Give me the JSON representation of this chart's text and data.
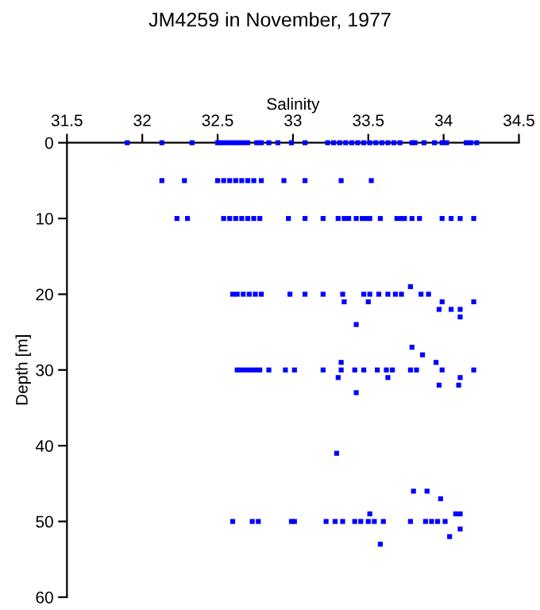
{
  "chart_data": {
    "type": "scatter",
    "title": "JM4259 in November, 1977",
    "xlabel": "Salinity",
    "ylabel": "Depth [m]",
    "xlim": [
      31.5,
      34.5
    ],
    "xticks": [
      31.5,
      32,
      32.5,
      33,
      33.5,
      34,
      34.5
    ],
    "ylim": [
      60,
      0
    ],
    "yticks": [
      0,
      10,
      20,
      30,
      40,
      50,
      60
    ],
    "marker": "square",
    "grid": false,
    "series": [
      {
        "color": "#0000ff",
        "x": [
          31.9,
          32.13,
          32.33,
          32.5,
          32.52,
          32.55,
          32.58,
          32.61,
          32.64,
          32.67,
          32.7,
          32.76,
          32.79,
          32.84,
          32.9,
          32.99,
          33.08,
          33.23,
          33.27,
          33.31,
          33.35,
          33.39,
          33.43,
          33.47,
          33.51,
          33.55,
          33.59,
          33.63,
          33.67,
          33.71,
          33.79,
          33.81,
          33.87,
          33.94,
          33.99,
          34.02,
          34.15,
          34.18,
          34.22,
          32.13,
          32.28,
          32.5,
          32.54,
          32.58,
          32.62,
          32.66,
          32.7,
          32.74,
          32.79,
          32.94,
          33.08,
          33.32,
          33.52,
          32.23,
          32.3,
          32.54,
          32.58,
          32.62,
          32.66,
          32.7,
          32.74,
          32.78,
          32.97,
          33.08,
          33.2,
          33.3,
          33.34,
          33.37,
          33.42,
          33.46,
          33.49,
          33.51,
          33.58,
          33.69,
          33.72,
          33.74,
          33.79,
          33.84,
          33.99,
          34.05,
          34.11,
          34.2,
          32.6,
          32.63,
          32.67,
          32.71,
          32.75,
          32.79,
          32.98,
          33.08,
          33.2,
          33.33,
          33.47,
          33.51,
          33.57,
          33.63,
          33.68,
          33.72,
          33.85,
          33.9,
          33.78,
          33.34,
          33.5,
          33.99,
          34.2,
          33.97,
          34.05,
          34.11,
          34.11,
          33.42,
          33.79,
          33.86,
          33.95,
          33.32,
          32.63,
          32.66,
          32.69,
          32.72,
          32.75,
          32.78,
          32.84,
          32.95,
          33.01,
          33.2,
          33.32,
          33.41,
          33.47,
          33.56,
          33.62,
          33.66,
          33.78,
          33.82,
          33.99,
          34.2,
          33.3,
          33.63,
          34.11,
          33.97,
          34.1,
          33.42,
          33.29,
          33.8,
          33.89,
          33.98,
          33.51,
          34.08,
          34.11,
          32.6,
          32.73,
          32.77,
          32.99,
          33.01,
          33.22,
          33.28,
          33.33,
          33.41,
          33.45,
          33.5,
          33.54,
          33.6,
          33.78,
          33.88,
          33.92,
          33.96,
          34.01,
          34.11,
          34.04,
          33.58
        ],
        "values": [
          0,
          0,
          0,
          0,
          0,
          0,
          0,
          0,
          0,
          0,
          0,
          0,
          0,
          0,
          0,
          0,
          0,
          0,
          0,
          0,
          0,
          0,
          0,
          0,
          0,
          0,
          0,
          0,
          0,
          0,
          0,
          0,
          0,
          0,
          0,
          0,
          0,
          0,
          0,
          5,
          5,
          5,
          5,
          5,
          5,
          5,
          5,
          5,
          5,
          5,
          5,
          5,
          5,
          10,
          10,
          10,
          10,
          10,
          10,
          10,
          10,
          10,
          10,
          10,
          10,
          10,
          10,
          10,
          10,
          10,
          10,
          10,
          10,
          10,
          10,
          10,
          10,
          10,
          10,
          10,
          10,
          10,
          20,
          20,
          20,
          20,
          20,
          20,
          20,
          20,
          20,
          20,
          20,
          20,
          20,
          20,
          20,
          20,
          20,
          20,
          19,
          21,
          21,
          21,
          21,
          22,
          22,
          22,
          23,
          24,
          27,
          28,
          29,
          29,
          30,
          30,
          30,
          30,
          30,
          30,
          30,
          30,
          30,
          30,
          30,
          30,
          30,
          30,
          30,
          30,
          30,
          30,
          30,
          30,
          31,
          31,
          31,
          32,
          32,
          33,
          41,
          46,
          46,
          47,
          49,
          49,
          49,
          50,
          50,
          50,
          50,
          50,
          50,
          50,
          50,
          50,
          50,
          50,
          50,
          50,
          50,
          50,
          50,
          50,
          50,
          51,
          52,
          53
        ]
      }
    ]
  }
}
